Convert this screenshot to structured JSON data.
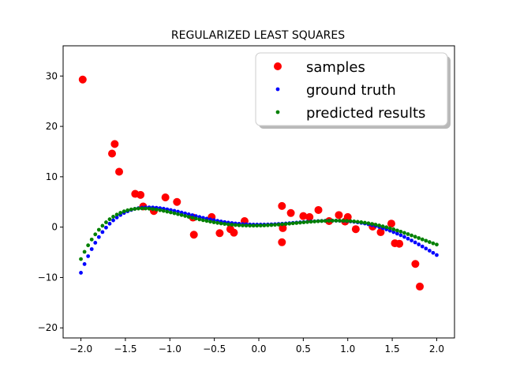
{
  "chart_data": {
    "type": "scatter",
    "title": "REGULARIZED LEAST SQUARES",
    "xlabel": "",
    "ylabel": "",
    "xlim": [
      -2.2,
      2.2
    ],
    "ylim": [
      -22,
      36
    ],
    "xticks": [
      -2.0,
      -1.5,
      -1.0,
      -0.5,
      0.0,
      0.5,
      1.0,
      1.5,
      2.0
    ],
    "xtick_labels": [
      "−2.0",
      "−1.5",
      "−1.0",
      "−0.5",
      "0.0",
      "0.5",
      "1.0",
      "1.5",
      "2.0"
    ],
    "yticks": [
      -20,
      -10,
      0,
      10,
      20,
      30
    ],
    "ytick_labels": [
      "−20",
      "−10",
      "0",
      "10",
      "20",
      "30"
    ],
    "grid": false,
    "legend_position": "top-right",
    "series": [
      {
        "name": "samples",
        "color": "#ff0000",
        "marker_size": "large",
        "points": [
          [
            -1.98,
            29.3
          ],
          [
            -1.65,
            14.6
          ],
          [
            -1.62,
            16.5
          ],
          [
            -1.57,
            11.0
          ],
          [
            -1.39,
            6.6
          ],
          [
            -1.33,
            6.4
          ],
          [
            -1.3,
            4.1
          ],
          [
            -1.18,
            3.2
          ],
          [
            -1.05,
            5.9
          ],
          [
            -0.92,
            5.0
          ],
          [
            -0.74,
            1.9
          ],
          [
            -0.73,
            -1.5
          ],
          [
            -0.53,
            2.0
          ],
          [
            -0.44,
            -1.2
          ],
          [
            -0.32,
            -0.4
          ],
          [
            -0.28,
            -1.1
          ],
          [
            -0.16,
            1.2
          ],
          [
            0.26,
            4.2
          ],
          [
            0.26,
            -3.0
          ],
          [
            0.27,
            -0.2
          ],
          [
            0.36,
            2.8
          ],
          [
            0.5,
            2.2
          ],
          [
            0.57,
            2.0
          ],
          [
            0.67,
            3.4
          ],
          [
            0.79,
            1.2
          ],
          [
            0.9,
            2.4
          ],
          [
            0.97,
            1.1
          ],
          [
            1.0,
            2.0
          ],
          [
            1.09,
            -0.4
          ],
          [
            1.28,
            0.1
          ],
          [
            1.37,
            -1.0
          ],
          [
            1.49,
            0.7
          ],
          [
            1.53,
            -3.2
          ],
          [
            1.58,
            -3.3
          ],
          [
            1.76,
            -7.3
          ],
          [
            1.81,
            -11.8
          ]
        ]
      },
      {
        "name": "ground truth",
        "color": "#0000ff",
        "marker_size": "small",
        "curve": "ground_truth"
      },
      {
        "name": "predicted results",
        "color": "#008000",
        "marker_size": "small",
        "curve": "predicted"
      }
    ]
  }
}
